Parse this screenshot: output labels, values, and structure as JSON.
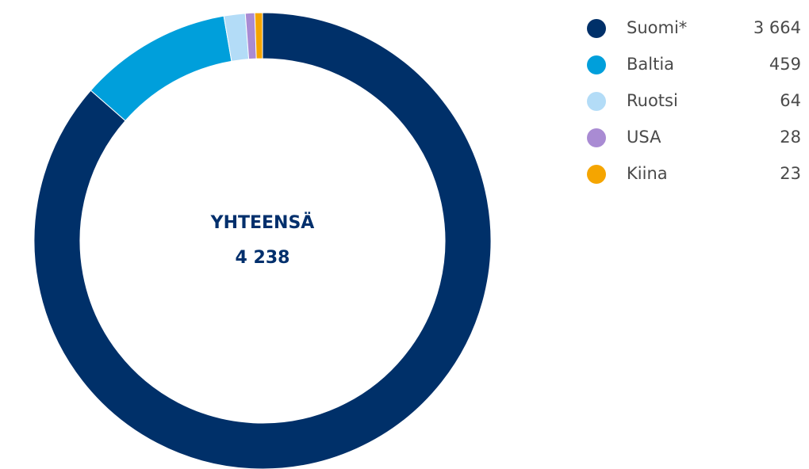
{
  "chart_data": {
    "type": "donut",
    "categories": [
      "Suomi*",
      "Baltia",
      "Ruotsi",
      "USA",
      "Kiina"
    ],
    "values": [
      3664,
      459,
      64,
      28,
      23
    ],
    "value_labels": [
      "3 664",
      "459",
      "64",
      "28",
      "23"
    ],
    "colors": [
      "#003069",
      "#009fdb",
      "#b3dcf7",
      "#a98bd3",
      "#f5a500"
    ],
    "center_label": "YHTEENSÄ",
    "total": {
      "value": 4238,
      "label": "4 238"
    },
    "legend": "right"
  }
}
